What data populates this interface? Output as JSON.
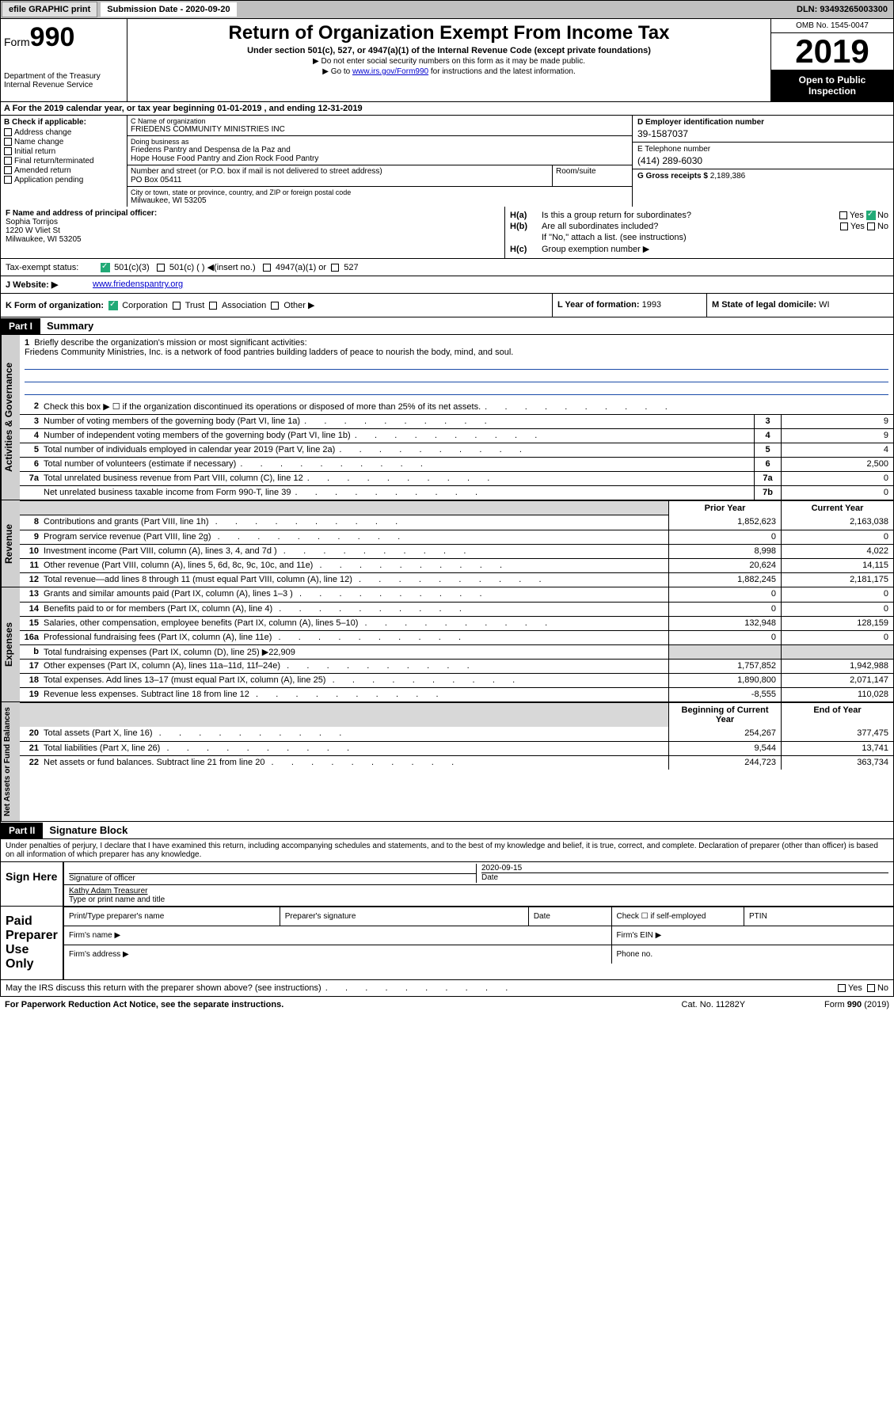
{
  "top": {
    "efile": "efile GRAPHIC print",
    "sub_label": "Submission Date - 2020-09-20",
    "dln": "DLN: 93493265003300"
  },
  "header": {
    "form_prefix": "Form",
    "form_num": "990",
    "dept": "Department of the Treasury\nInternal Revenue Service",
    "title": "Return of Organization Exempt From Income Tax",
    "subtitle": "Under section 501(c), 527, or 4947(a)(1) of the Internal Revenue Code (except private foundations)",
    "note1": "▶ Do not enter social security numbers on this form as it may be made public.",
    "note2_pre": "▶ Go to ",
    "note2_link": "www.irs.gov/Form990",
    "note2_post": " for instructions and the latest information.",
    "omb": "OMB No. 1545-0047",
    "year": "2019",
    "inspection": "Open to Public Inspection"
  },
  "period": "A For the 2019 calendar year, or tax year beginning 01-01-2019    , and ending 12-31-2019",
  "boxB": {
    "label": "B Check if applicable:",
    "items": [
      "Address change",
      "Name change",
      "Initial return",
      "Final return/terminated",
      "Amended return",
      "Application pending"
    ]
  },
  "boxC": {
    "name_label": "C Name of organization",
    "name": "FRIEDENS COMMUNITY MINISTRIES INC",
    "dba_label": "Doing business as",
    "dba": "Friedens Pantry and Despensa de la Paz and\nHope House Food Pantry and Zion Rock Food Pantry",
    "addr_label": "Number and street (or P.O. box if mail is not delivered to street address)",
    "room_label": "Room/suite",
    "addr": "PO Box 05411",
    "city_label": "City or town, state or province, country, and ZIP or foreign postal code",
    "city": "Milwaukee, WI  53205"
  },
  "boxD": {
    "label": "D Employer identification number",
    "val": "39-1587037"
  },
  "boxE": {
    "label": "E Telephone number",
    "val": "(414) 289-6030"
  },
  "boxG": {
    "label": "G Gross receipts $",
    "val": "2,189,386"
  },
  "boxF": {
    "label": "F  Name and address of principal officer:",
    "name": "Sophia Torrijos",
    "addr1": "1220 W Vliet St",
    "addr2": "Milwaukee, WI  53205"
  },
  "boxH": {
    "a": "Is this a group return for subordinates?",
    "b": "Are all subordinates included?",
    "b_note": "If \"No,\" attach a list. (see instructions)",
    "c": "Group exemption number ▶",
    "ha_label": "H(a)",
    "hb_label": "H(b)",
    "hc_label": "H(c)"
  },
  "boxI": {
    "label": "Tax-exempt status:",
    "opts": [
      "501(c)(3)",
      "501(c) (   ) ◀(insert no.)",
      "4947(a)(1) or",
      "527"
    ]
  },
  "boxJ": {
    "label": "J   Website: ▶",
    "val": "www.friedenspantry.org"
  },
  "boxK": {
    "label": "K Form of organization:",
    "opts": [
      "Corporation",
      "Trust",
      "Association",
      "Other ▶"
    ]
  },
  "boxL": {
    "label": "L Year of formation:",
    "val": "1993"
  },
  "boxM": {
    "label": "M State of legal domicile:",
    "val": "WI"
  },
  "partI": {
    "num": "Part I",
    "title": "Summary"
  },
  "mission": {
    "num": "1",
    "label": "Briefly describe the organization's mission or most significant activities:",
    "text": "Friedens Community Ministries, Inc. is a network of food pantries building ladders of peace to nourish the body, mind, and soul."
  },
  "gov_rows": [
    {
      "n": "2",
      "d": "Check this box ▶ ☐  if the organization discontinued its operations or disposed of more than 25% of its net assets.",
      "b": "",
      "v": ""
    },
    {
      "n": "3",
      "d": "Number of voting members of the governing body (Part VI, line 1a)",
      "b": "3",
      "v": "9"
    },
    {
      "n": "4",
      "d": "Number of independent voting members of the governing body (Part VI, line 1b)",
      "b": "4",
      "v": "9"
    },
    {
      "n": "5",
      "d": "Total number of individuals employed in calendar year 2019 (Part V, line 2a)",
      "b": "5",
      "v": "4"
    },
    {
      "n": "6",
      "d": "Total number of volunteers (estimate if necessary)",
      "b": "6",
      "v": "2,500"
    },
    {
      "n": "7a",
      "d": "Total unrelated business revenue from Part VIII, column (C), line 12",
      "b": "7a",
      "v": "0"
    },
    {
      "n": "",
      "d": "Net unrelated business taxable income from Form 990-T, line 39",
      "b": "7b",
      "v": "0"
    }
  ],
  "col_hdrs": {
    "prior": "Prior Year",
    "current": "Current Year"
  },
  "rev_rows": [
    {
      "n": "8",
      "d": "Contributions and grants (Part VIII, line 1h)",
      "p": "1,852,623",
      "c": "2,163,038"
    },
    {
      "n": "9",
      "d": "Program service revenue (Part VIII, line 2g)",
      "p": "0",
      "c": "0"
    },
    {
      "n": "10",
      "d": "Investment income (Part VIII, column (A), lines 3, 4, and 7d )",
      "p": "8,998",
      "c": "4,022"
    },
    {
      "n": "11",
      "d": "Other revenue (Part VIII, column (A), lines 5, 6d, 8c, 9c, 10c, and 11e)",
      "p": "20,624",
      "c": "14,115"
    },
    {
      "n": "12",
      "d": "Total revenue—add lines 8 through 11 (must equal Part VIII, column (A), line 12)",
      "p": "1,882,245",
      "c": "2,181,175"
    }
  ],
  "exp_rows": [
    {
      "n": "13",
      "d": "Grants and similar amounts paid (Part IX, column (A), lines 1–3 )",
      "p": "0",
      "c": "0"
    },
    {
      "n": "14",
      "d": "Benefits paid to or for members (Part IX, column (A), line 4)",
      "p": "0",
      "c": "0"
    },
    {
      "n": "15",
      "d": "Salaries, other compensation, employee benefits (Part IX, column (A), lines 5–10)",
      "p": "132,948",
      "c": "128,159"
    },
    {
      "n": "16a",
      "d": "Professional fundraising fees (Part IX, column (A), line 11e)",
      "p": "0",
      "c": "0"
    },
    {
      "n": "b",
      "d": "Total fundraising expenses (Part IX, column (D), line 25) ▶22,909",
      "p": "",
      "c": "",
      "shade": true
    },
    {
      "n": "17",
      "d": "Other expenses (Part IX, column (A), lines 11a–11d, 11f–24e)",
      "p": "1,757,852",
      "c": "1,942,988"
    },
    {
      "n": "18",
      "d": "Total expenses. Add lines 13–17 (must equal Part IX, column (A), line 25)",
      "p": "1,890,800",
      "c": "2,071,147"
    },
    {
      "n": "19",
      "d": "Revenue less expenses. Subtract line 18 from line 12",
      "p": "-8,555",
      "c": "110,028"
    }
  ],
  "bal_hdrs": {
    "begin": "Beginning of Current Year",
    "end": "End of Year"
  },
  "bal_rows": [
    {
      "n": "20",
      "d": "Total assets (Part X, line 16)",
      "p": "254,267",
      "c": "377,475"
    },
    {
      "n": "21",
      "d": "Total liabilities (Part X, line 26)",
      "p": "9,544",
      "c": "13,741"
    },
    {
      "n": "22",
      "d": "Net assets or fund balances. Subtract line 21 from line 20",
      "p": "244,723",
      "c": "363,734"
    }
  ],
  "side_labels": {
    "gov": "Activities & Governance",
    "rev": "Revenue",
    "exp": "Expenses",
    "bal": "Net Assets or Fund Balances"
  },
  "partII": {
    "num": "Part II",
    "title": "Signature Block"
  },
  "sig": {
    "perjury": "Under penalties of perjury, I declare that I have examined this return, including accompanying schedules and statements, and to the best of my knowledge and belief, it is true, correct, and complete. Declaration of preparer (other than officer) is based on all information of which preparer has any knowledge.",
    "sign_here": "Sign Here",
    "sig_officer": "Signature of officer",
    "date_val": "2020-09-15",
    "date_label": "Date",
    "name_val": "Kathy Adam  Treasurer",
    "name_label": "Type or print name and title",
    "paid": "Paid Preparer Use Only",
    "prep_name": "Print/Type preparer's name",
    "prep_sig": "Preparer's signature",
    "prep_date": "Date",
    "check_self": "Check ☐ if self-employed",
    "ptin": "PTIN",
    "firm_name": "Firm's name    ▶",
    "firm_ein": "Firm's EIN ▶",
    "firm_addr": "Firm's address ▶",
    "phone": "Phone no."
  },
  "footer": {
    "discuss": "May the IRS discuss this return with the preparer shown above? (see instructions)",
    "paperwork": "For Paperwork Reduction Act Notice, see the separate instructions.",
    "cat": "Cat. No. 11282Y",
    "form": "Form 990 (2019)"
  }
}
